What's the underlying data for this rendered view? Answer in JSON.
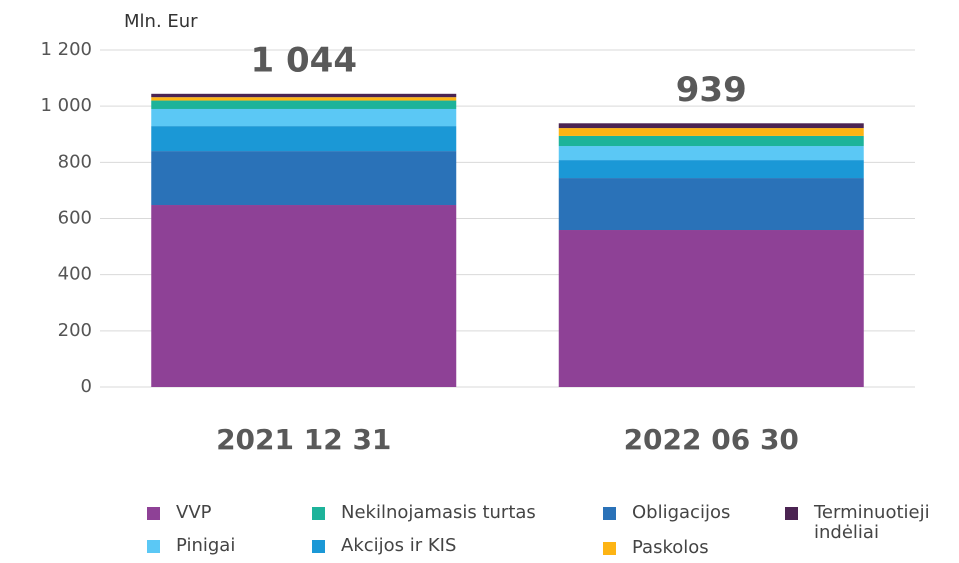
{
  "chart_data": {
    "type": "stacked_bar",
    "y_label": "Mln. Eur",
    "categories": [
      "2021 12 31",
      "2022 06 30"
    ],
    "totals": [
      1044,
      939
    ],
    "total_labels": [
      "1 044",
      "939"
    ],
    "series": [
      {
        "name": "VVP",
        "color": "#8e4196",
        "values": [
          648,
          559
        ]
      },
      {
        "name": "Obligacijos",
        "color": "#2a72b8",
        "values": [
          192,
          185
        ]
      },
      {
        "name": "Akcijos ir KIS",
        "color": "#1b98d6",
        "values": [
          89,
          64
        ]
      },
      {
        "name": "Pinigai",
        "color": "#5bc8f5",
        "values": [
          61,
          50
        ]
      },
      {
        "name": "Nekilnojamasis turtas",
        "color": "#1db39a",
        "values": [
          30,
          36
        ]
      },
      {
        "name": "Paskolos",
        "color": "#fdb414",
        "values": [
          12,
          28
        ]
      },
      {
        "name": "Terminuotieji indėliai",
        "color": "#4b2452",
        "values": [
          12,
          17
        ]
      }
    ],
    "ylim": [
      0,
      1200
    ],
    "yticks": [
      0,
      200,
      400,
      600,
      800,
      {
        "value": 1000,
        "label": "1 000"
      },
      {
        "value": 1200,
        "label": "1 200"
      }
    ],
    "grid": true
  }
}
